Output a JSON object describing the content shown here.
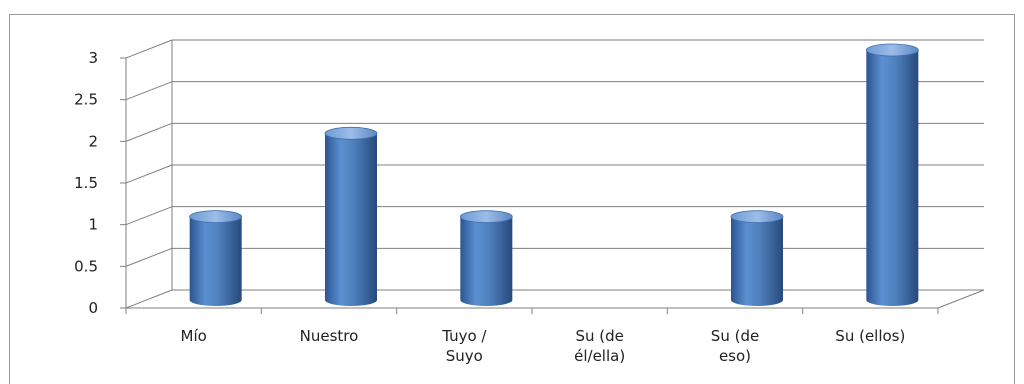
{
  "chart_data": {
    "type": "bar",
    "style": "3d-cylinder",
    "categories": [
      [
        "Mío"
      ],
      [
        "Nuestro"
      ],
      [
        "Tuyo /",
        "Suyo"
      ],
      [
        "Su (de",
        "él/ella)"
      ],
      [
        "Su (de",
        "eso)"
      ],
      [
        "Su (ellos)"
      ]
    ],
    "values": [
      1,
      2,
      1,
      0,
      1,
      3
    ],
    "ylim": [
      0,
      3
    ],
    "yticks": [
      "0",
      "0.5",
      "1",
      "1.5",
      "2",
      "2.5",
      "3"
    ],
    "title": "",
    "xlabel": "",
    "ylabel": "",
    "grid": true,
    "legend": "none",
    "colors": {
      "bar": "#4f81bd",
      "bar_dark": "#2c5591",
      "bar_light": "#8fb3e3",
      "grid": "#7f7f7f",
      "frame": "#9a9a9a"
    }
  }
}
